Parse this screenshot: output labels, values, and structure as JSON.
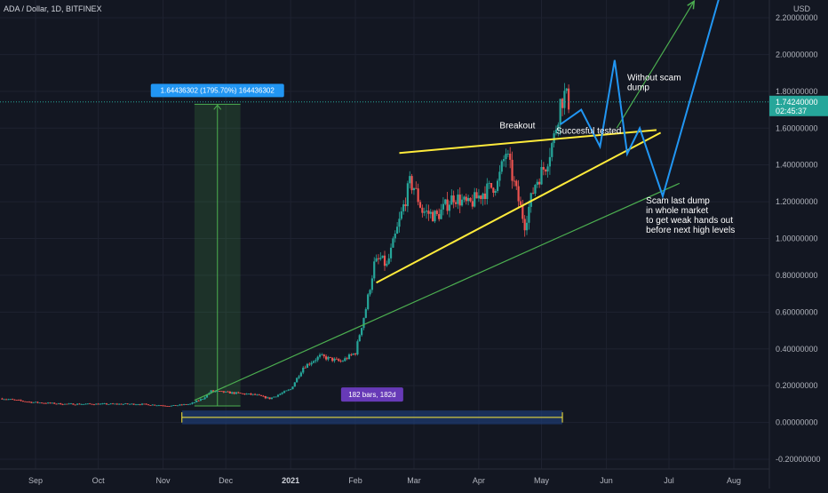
{
  "header": {
    "title": "ADA / Dollar, 1D, BITFINEX"
  },
  "colors": {
    "background": "#131722",
    "grid": "#1e2230",
    "up_candle": "#26a69a",
    "down_candle": "#ef5350",
    "trend_yellow": "#ffeb3b",
    "trend_green": "#4caf50",
    "projection_blue": "#2196f3",
    "measure_green": "#4caf50",
    "range_blue": "#1e3a6e",
    "badge_blue": "#2196f3",
    "badge_purple": "#673ab7",
    "last_price_bg": "#26a69a"
  },
  "chart_data": {
    "type": "candlestick",
    "symbol": "ADA / Dollar",
    "interval": "1D",
    "exchange": "BITFINEX",
    "currency_label": "USD",
    "ylim": [
      -0.22,
      2.3
    ],
    "y_ticks": [
      "2.20000000",
      "2.00000000",
      "1.80000000",
      "1.60000000",
      "1.40000000",
      "1.20000000",
      "1.00000000",
      "0.80000000",
      "0.60000000",
      "0.40000000",
      "0.20000000",
      "0.00000000",
      "-0.20000000"
    ],
    "x_ticks": [
      {
        "label": "Sep",
        "date": "2020-09-01",
        "bold": false
      },
      {
        "label": "Oct",
        "date": "2020-10-01",
        "bold": false
      },
      {
        "label": "Nov",
        "date": "2020-11-01",
        "bold": false
      },
      {
        "label": "Dec",
        "date": "2020-12-01",
        "bold": false
      },
      {
        "label": "2021",
        "date": "2021-01-01",
        "bold": true
      },
      {
        "label": "Feb",
        "date": "2021-02-01",
        "bold": false
      },
      {
        "label": "Mar",
        "date": "2021-03-01",
        "bold": false
      },
      {
        "label": "Apr",
        "date": "2021-04-01",
        "bold": false
      },
      {
        "label": "May",
        "date": "2021-05-01",
        "bold": false
      },
      {
        "label": "Jun",
        "date": "2021-06-01",
        "bold": false
      },
      {
        "label": "Jul",
        "date": "2021-07-01",
        "bold": false
      },
      {
        "label": "Aug",
        "date": "2021-08-01",
        "bold": false
      }
    ],
    "price_path": [
      [
        "2020-08-16",
        0.13
      ],
      [
        "2020-08-30",
        0.11
      ],
      [
        "2020-09-15",
        0.1
      ],
      [
        "2020-10-01",
        0.1
      ],
      [
        "2020-10-20",
        0.1
      ],
      [
        "2020-11-05",
        0.09
      ],
      [
        "2020-11-14",
        0.1
      ],
      [
        "2020-11-20",
        0.13
      ],
      [
        "2020-11-24",
        0.17
      ],
      [
        "2020-12-05",
        0.16
      ],
      [
        "2020-12-15",
        0.15
      ],
      [
        "2020-12-22",
        0.13
      ],
      [
        "2021-01-01",
        0.18
      ],
      [
        "2021-01-07",
        0.3
      ],
      [
        "2021-01-15",
        0.36
      ],
      [
        "2021-01-25",
        0.33
      ],
      [
        "2021-02-01",
        0.38
      ],
      [
        "2021-02-03",
        0.48
      ],
      [
        "2021-02-06",
        0.62
      ],
      [
        "2021-02-10",
        0.86
      ],
      [
        "2021-02-13",
        0.89
      ],
      [
        "2021-02-16",
        0.85
      ],
      [
        "2021-02-21",
        1.05
      ],
      [
        "2021-02-27",
        1.3
      ],
      [
        "2021-03-01",
        1.28
      ],
      [
        "2021-03-05",
        1.15
      ],
      [
        "2021-03-12",
        1.12
      ],
      [
        "2021-03-20",
        1.23
      ],
      [
        "2021-03-27",
        1.18
      ],
      [
        "2021-04-03",
        1.25
      ],
      [
        "2021-04-10",
        1.3
      ],
      [
        "2021-04-14",
        1.47
      ],
      [
        "2021-04-19",
        1.25
      ],
      [
        "2021-04-23",
        1.08
      ],
      [
        "2021-04-28",
        1.3
      ],
      [
        "2021-05-03",
        1.4
      ],
      [
        "2021-05-07",
        1.55
      ],
      [
        "2021-05-10",
        1.74
      ],
      [
        "2021-05-12",
        1.78
      ],
      [
        "2021-05-14",
        1.742
      ]
    ],
    "last_price": "1.74240000",
    "countdown": "02:45:37",
    "lines": [
      {
        "name": "upper-resistance",
        "color": "yellow",
        "from": [
          "2021-02-22",
          1.465
        ],
        "to": [
          "2021-06-25",
          1.59
        ]
      },
      {
        "name": "lower-support",
        "color": "yellow",
        "from": [
          "2021-02-11",
          0.76
        ],
        "to": [
          "2021-06-27",
          1.575
        ]
      },
      {
        "name": "long-trend",
        "color": "green",
        "from": [
          "2020-11-16",
          0.12
        ],
        "to": [
          "2021-07-06",
          1.3
        ]
      },
      {
        "name": "bull-arrow",
        "color": "green",
        "from": [
          "2021-06-06",
          1.6
        ],
        "to": [
          "2021-07-13",
          2.29
        ]
      }
    ],
    "projections": [
      {
        "name": "projection-scam-dump",
        "points": [
          [
            "2021-05-10",
            1.62
          ],
          [
            "2021-05-20",
            1.7
          ],
          [
            "2021-05-29",
            1.5
          ],
          [
            "2021-06-05",
            1.97
          ],
          [
            "2021-06-11",
            1.46
          ],
          [
            "2021-06-17",
            1.6
          ],
          [
            "2021-06-28",
            1.23
          ],
          [
            "2021-07-25",
            2.31
          ]
        ]
      }
    ],
    "price_range": {
      "label": "1.64436302 (1795.70%) 164436302",
      "from": [
        "2020-11-16",
        0.09
      ],
      "to": [
        "2020-12-08",
        1.73
      ]
    },
    "date_range": {
      "label": "182 bars, 182d",
      "from": "2020-11-10",
      "to": "2021-05-11"
    },
    "annotations": [
      {
        "name": "breakout",
        "text": "Breakout",
        "at": [
          "2021-04-11",
          1.6
        ]
      },
      {
        "name": "succesful-tested",
        "text": "Succesful tested",
        "at": [
          "2021-05-08",
          1.57
        ]
      },
      {
        "name": "without-scam-dump",
        "text": "Without scam\ndump",
        "at": [
          "2021-06-11",
          1.86
        ]
      },
      {
        "name": "scam-last-dump",
        "text": "Scam last dump\nin whole market\nto get weak hands out\nbefore next high levels",
        "at": [
          "2021-06-20",
          1.19
        ]
      }
    ]
  }
}
